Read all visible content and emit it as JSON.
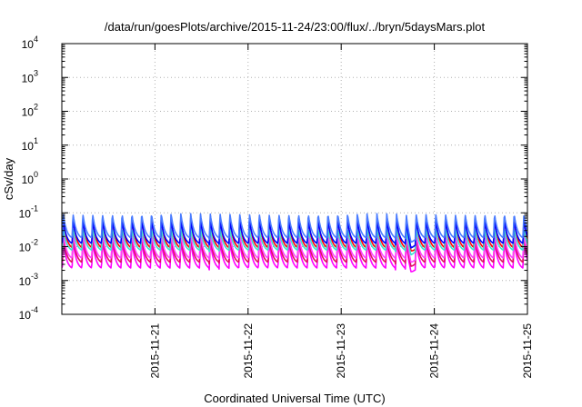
{
  "chart_data": {
    "type": "line",
    "title": "/data/run/goesPlots/archive/2015-11-24/23:00/flux/../bryn/5daysMars.plot",
    "xlabel": "Coordinated Universal Time (UTC)",
    "ylabel": "cSv/day",
    "x_range": [
      "2015-11-20T00:00",
      "2015-11-25T00:00"
    ],
    "x_ticks": [
      "2015-11-21",
      "2015-11-22",
      "2015-11-23",
      "2015-11-24",
      "2015-11-25"
    ],
    "y_scale": "log",
    "ylim": [
      0.0001,
      10000
    ],
    "y_ticks": [
      {
        "base": "10",
        "exp": "-4"
      },
      {
        "base": "10",
        "exp": "-3"
      },
      {
        "base": "10",
        "exp": "-2"
      },
      {
        "base": "10",
        "exp": "-1"
      },
      {
        "base": "10",
        "exp": "0"
      },
      {
        "base": "10",
        "exp": "1"
      },
      {
        "base": "10",
        "exp": "2"
      },
      {
        "base": "10",
        "exp": "3"
      },
      {
        "base": "10",
        "exp": "4"
      }
    ],
    "grid": true,
    "legend": "none",
    "pattern": {
      "cycles_per_day": 9.5,
      "first_peak_fraction_of_day": 0.12,
      "peak_sharpness": 10,
      "dip": {
        "day_fraction": 3.75,
        "width": 0.06,
        "factor": 0.55
      }
    },
    "series": [
      {
        "color": "#ff00ff",
        "peak": 0.015,
        "trough": 0.002
      },
      {
        "color": "#e01060",
        "peak": 0.02,
        "trough": 0.003
      },
      {
        "color": "#ff40ff",
        "peak": 0.025,
        "trough": 0.004
      },
      {
        "color": "#ff0000",
        "peak": 0.07,
        "trough": 0.008
      },
      {
        "color": "#40e0d0",
        "peak": 0.035,
        "trough": 0.007
      },
      {
        "color": "#0000ff",
        "peak": 0.06,
        "trough": 0.011
      },
      {
        "color": "#4a7cff",
        "peak": 0.095,
        "trough": 0.016
      }
    ]
  }
}
